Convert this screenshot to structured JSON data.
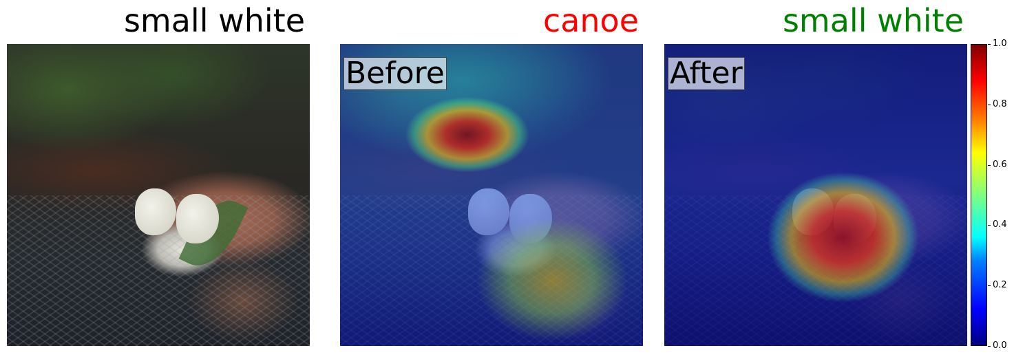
{
  "panels": [
    {
      "title": "small white",
      "title_color": "#000000"
    },
    {
      "title": "canoe",
      "title_color": "#ff0000",
      "overlay_label": "Before"
    },
    {
      "title": "small white",
      "title_color": "#008000",
      "overlay_label": "After"
    }
  ],
  "colorbar": {
    "ticks": [
      "0.0",
      "0.2",
      "0.4",
      "0.6",
      "0.8",
      "1.0"
    ],
    "colormap": "jet"
  }
}
